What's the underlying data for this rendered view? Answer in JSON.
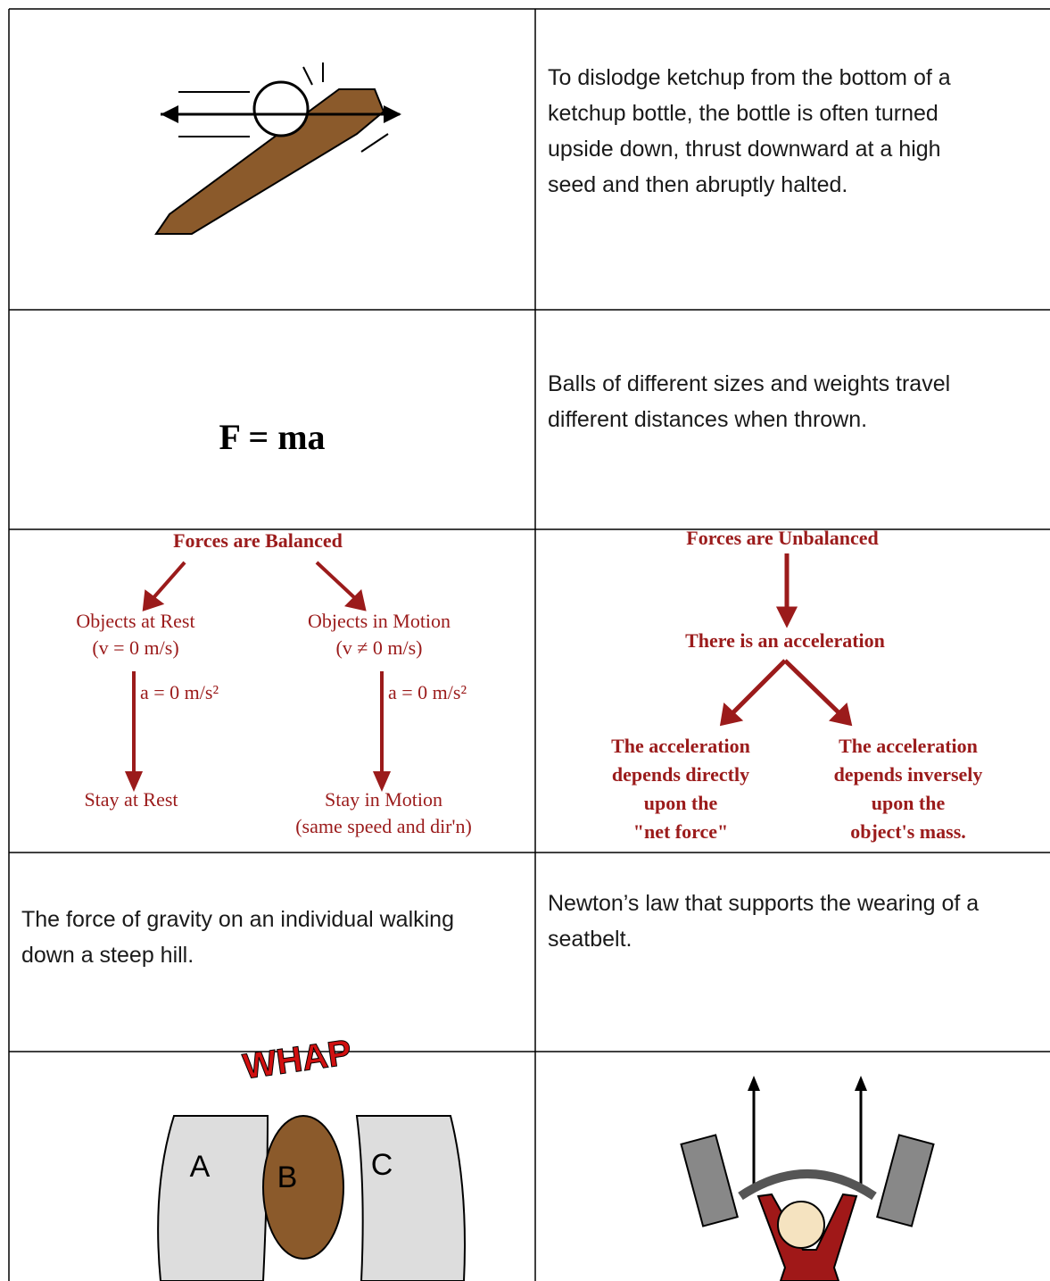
{
  "ketchup_text": [
    "To dislodge ketchup from the bottom of a",
    "ketchup bottle, the bottle is often turned",
    "upside down, thrust downward at a high",
    "seed and then abruptly halted."
  ],
  "formula": "F = ma",
  "balls_text": [
    "Balls of different sizes and weights travel",
    "different distances when thrown."
  ],
  "balanced_diagram": {
    "title": "Forces are Balanced",
    "rest": {
      "label": "Objects at Rest",
      "velocity": "(v = 0 m/s)",
      "acceleration": "a = 0 m/s²",
      "result": "Stay at Rest"
    },
    "motion": {
      "label": "Objects in Motion",
      "velocity": "(v ≠ 0 m/s)",
      "acceleration": "a = 0 m/s²",
      "result": "Stay in Motion",
      "note": "(same speed and dir'n)"
    }
  },
  "unbalanced_diagram": {
    "title": "Forces are Unbalanced",
    "middle": "There is an acceleration",
    "left": [
      "The acceleration",
      "depends directly",
      "upon the",
      "\"net force\""
    ],
    "right": [
      "The acceleration",
      "depends inversely",
      "upon the",
      "object's mass."
    ]
  },
  "gravity_text": [
    "The force of gravity on an individual walking",
    "down a steep hill."
  ],
  "seatbelt_text": [
    "Newton’s law that supports the wearing of a",
    "seatbelt."
  ],
  "collision_image": {
    "sound": "WHAP",
    "labels": [
      "A",
      "B",
      "C"
    ]
  }
}
